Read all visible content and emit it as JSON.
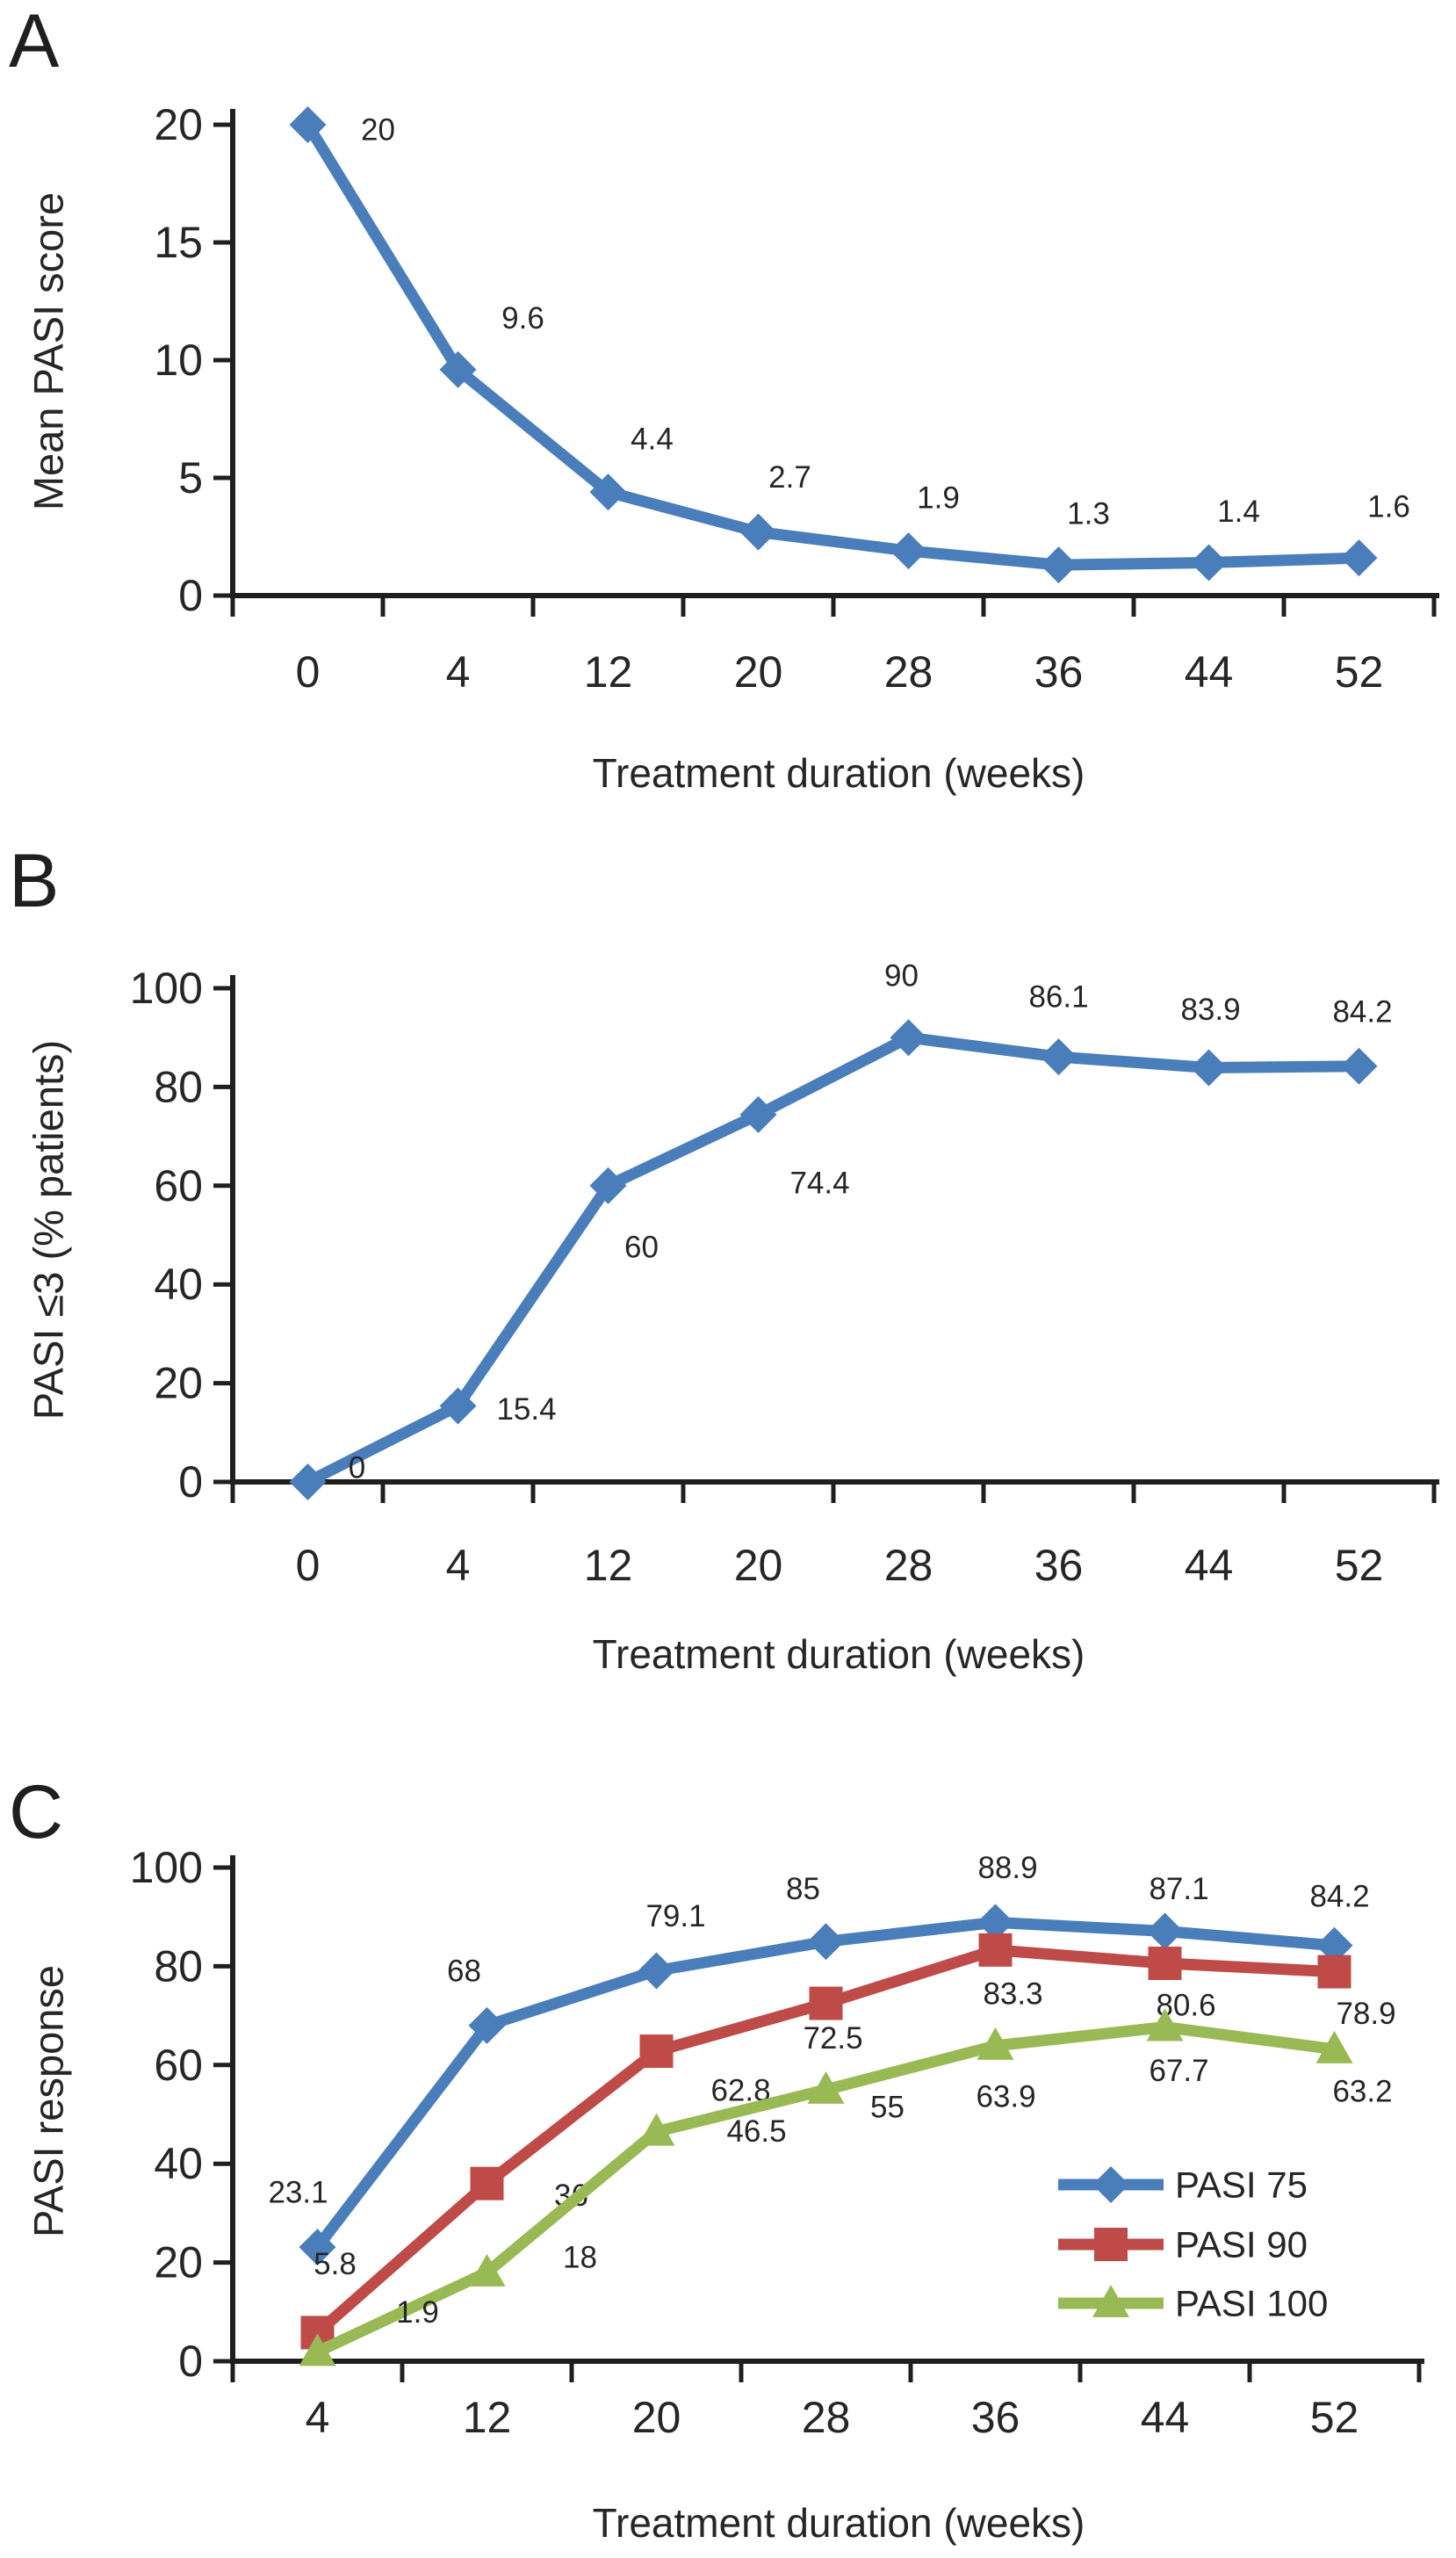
{
  "colors": {
    "background": "#ffffff",
    "text": "#262626",
    "axis": "#1f1f1f",
    "pasi_75_blue": "#4a7ebb",
    "pasi_90_red": "#be4b48",
    "pasi_100_green": "#98b954"
  },
  "panels": [
    {
      "letter": "A",
      "y_title": "Mean PASI score",
      "x_title": "Treatment duration (weeks)"
    },
    {
      "letter": "B",
      "y_title": "PASI ≤3 (% patients)",
      "x_title": "Treatment duration (weeks)"
    },
    {
      "letter": "C",
      "y_title": "PASI response",
      "x_title": "Treatment duration (weeks)"
    }
  ],
  "chart_data": [
    {
      "type": "line",
      "panel": "A",
      "xlabel": "Treatment duration (weeks)",
      "ylabel": "Mean PASI score",
      "categories": [
        "0",
        "4",
        "12",
        "20",
        "28",
        "36",
        "44",
        "52"
      ],
      "ylim": [
        0,
        20
      ],
      "yticks": [
        0,
        5,
        10,
        15,
        20
      ],
      "grid": false,
      "legend": null,
      "series": [
        {
          "name": "Mean PASI score",
          "color": "#4a7ebb",
          "marker": "diamond",
          "values": [
            20,
            9.6,
            4.4,
            2.7,
            1.9,
            1.3,
            1.4,
            1.6
          ],
          "labels": [
            "20",
            "9.6",
            "4.4",
            "2.7",
            "1.9",
            "1.3",
            "1.4",
            "1.6"
          ],
          "label_offsets": [
            [
              80,
              6
            ],
            [
              74,
              -58
            ],
            [
              50,
              -60
            ],
            [
              36,
              -62
            ],
            [
              34,
              -60
            ],
            [
              34,
              -58
            ],
            [
              34,
              -58
            ],
            [
              34,
              -58
            ]
          ]
        }
      ]
    },
    {
      "type": "line",
      "panel": "B",
      "xlabel": "Treatment duration (weeks)",
      "ylabel": "PASI ≤3 (% patients)",
      "categories": [
        "0",
        "4",
        "12",
        "20",
        "28",
        "36",
        "44",
        "52"
      ],
      "ylim": [
        0,
        100
      ],
      "yticks": [
        0,
        20,
        40,
        60,
        80,
        100
      ],
      "grid": false,
      "legend": null,
      "series": [
        {
          "name": "PASI ≤3 (% patients)",
          "color": "#4a7ebb",
          "marker": "diamond",
          "values": [
            0,
            15.4,
            60,
            74.4,
            90,
            86.1,
            83.9,
            84.2
          ],
          "labels": [
            "0",
            "15.4",
            "60",
            "74.4",
            "90",
            "86.1",
            "83.9",
            "84.2"
          ],
          "label_offsets": [
            [
              56,
              -16
            ],
            [
              78,
              4
            ],
            [
              38,
              70
            ],
            [
              70,
              78
            ],
            [
              -8,
              -70
            ],
            [
              0,
              -68
            ],
            [
              2,
              -66
            ],
            [
              4,
              -62
            ]
          ]
        }
      ]
    },
    {
      "type": "line",
      "panel": "C",
      "xlabel": "Treatment duration (weeks)",
      "ylabel": "PASI response",
      "categories": [
        "4",
        "12",
        "20",
        "28",
        "36",
        "44",
        "52"
      ],
      "ylim": [
        0,
        100
      ],
      "yticks": [
        0,
        20,
        40,
        60,
        80,
        100
      ],
      "grid": false,
      "legend": {
        "position": "inside-right-bottom",
        "items": [
          "PASI 75",
          "PASI 90",
          "PASI 100"
        ]
      },
      "series": [
        {
          "name": "PASI 75",
          "color": "#4a7ebb",
          "marker": "diamond",
          "values": [
            23.1,
            68,
            79.1,
            85,
            88.9,
            87.1,
            84.2
          ],
          "labels": [
            "23.1",
            "68",
            "79.1",
            "85",
            "88.9",
            "87.1",
            "84.2"
          ],
          "label_offsets": [
            [
              -22,
              -62
            ],
            [
              -26,
              -62
            ],
            [
              22,
              -62
            ],
            [
              -26,
              -60
            ],
            [
              14,
              -62
            ],
            [
              16,
              -48
            ],
            [
              6,
              -56
            ]
          ]
        },
        {
          "name": "PASI 90",
          "color": "#be4b48",
          "marker": "square",
          "values": [
            5.8,
            36,
            62.8,
            72.5,
            83.3,
            80.6,
            78.9
          ],
          "labels": [
            "5.8",
            "36",
            "62.8",
            "72.5",
            "83.3",
            "80.6",
            "78.9"
          ],
          "label_offsets": [
            [
              20,
              -78
            ],
            [
              96,
              14
            ],
            [
              96,
              45
            ],
            [
              8,
              40
            ],
            [
              20,
              50
            ],
            [
              24,
              48
            ],
            [
              36,
              48
            ]
          ]
        },
        {
          "name": "PASI 100",
          "color": "#98b954",
          "marker": "triangle",
          "values": [
            1.9,
            18,
            46.5,
            55,
            63.9,
            67.7,
            63.2
          ],
          "labels": [
            "1.9",
            "18",
            "46.5",
            "55",
            "63.9",
            "67.7",
            "63.2"
          ],
          "label_offsets": [
            [
              114,
              -45
            ],
            [
              106,
              -17
            ],
            [
              114,
              0
            ],
            [
              70,
              20
            ],
            [
              12,
              58
            ],
            [
              16,
              50
            ],
            [
              32,
              48
            ]
          ]
        }
      ]
    }
  ]
}
